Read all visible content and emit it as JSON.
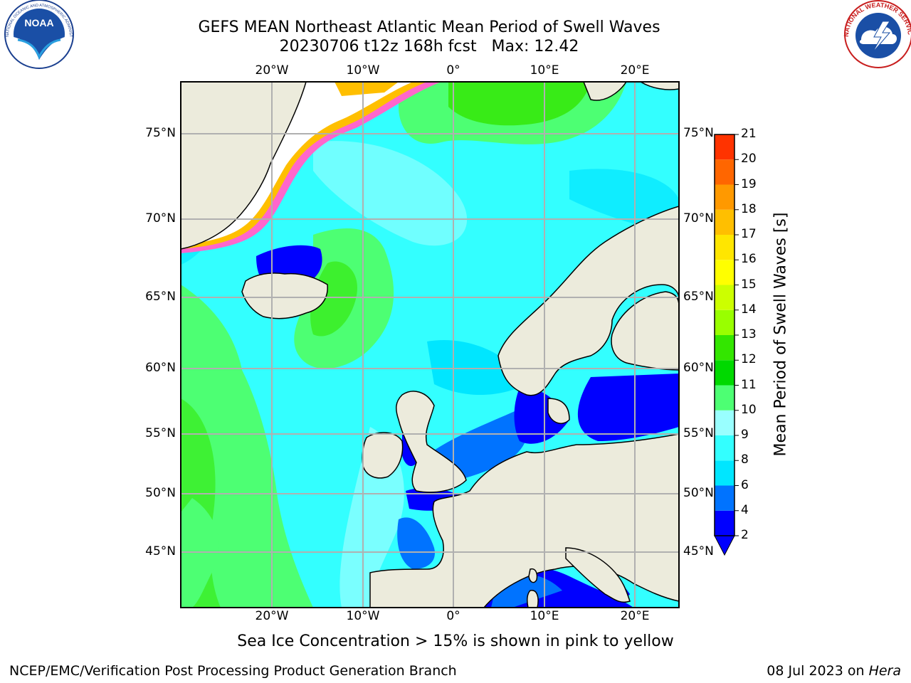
{
  "title": {
    "line1": "GEFS MEAN Northeast Atlantic Mean Period of Swell Waves",
    "line2": "20230706 t12z 168h fcst   Max: 12.42"
  },
  "logos": {
    "left": "NOAA",
    "left_icon": "noaa-logo",
    "left_ring_text": "NATIONAL OCEANIC AND ATMOSPHERIC ADMINISTRATION · U.S. DEPARTMENT OF COMMERCE",
    "right_icon": "national-weather-service-logo",
    "right_ring_text": "NATIONAL WEATHER SERVICE"
  },
  "map": {
    "lon_labels": [
      "20°W",
      "10°W",
      "0°",
      "10°E",
      "20°E"
    ],
    "lat_labels": [
      "75°N",
      "70°N",
      "65°N",
      "60°N",
      "55°N",
      "50°N",
      "45°N"
    ],
    "grid": true,
    "land_color": "#ecebdc",
    "ice_color": "#ffffff"
  },
  "colorbar": {
    "label": "Mean Period of Swell Waves [s]",
    "ticks": [
      "2",
      "4",
      "6",
      "8",
      "9",
      "10",
      "11",
      "12",
      "13",
      "14",
      "15",
      "16",
      "17",
      "18",
      "19",
      "20",
      "21"
    ],
    "colors": [
      "#0000ff",
      "#0073ff",
      "#00e6ff",
      "#33ffff",
      "#99ffff",
      "#4dff73",
      "#00d900",
      "#33e600",
      "#99ff00",
      "#ccff00",
      "#ffff00",
      "#ffe600",
      "#ffbf00",
      "#ff9900",
      "#ff6600",
      "#ff3300",
      "#ff0000"
    ],
    "extend_below": true,
    "extend_color": "#0000ff"
  },
  "ice_note": "Sea Ice Concentration > 15% is shown in pink to yellow",
  "footer": {
    "left": "NCEP/EMC/Verification Post Processing Product Generation Branch",
    "right_date": "08 Jul 2023 on ",
    "right_host": "Hera"
  }
}
